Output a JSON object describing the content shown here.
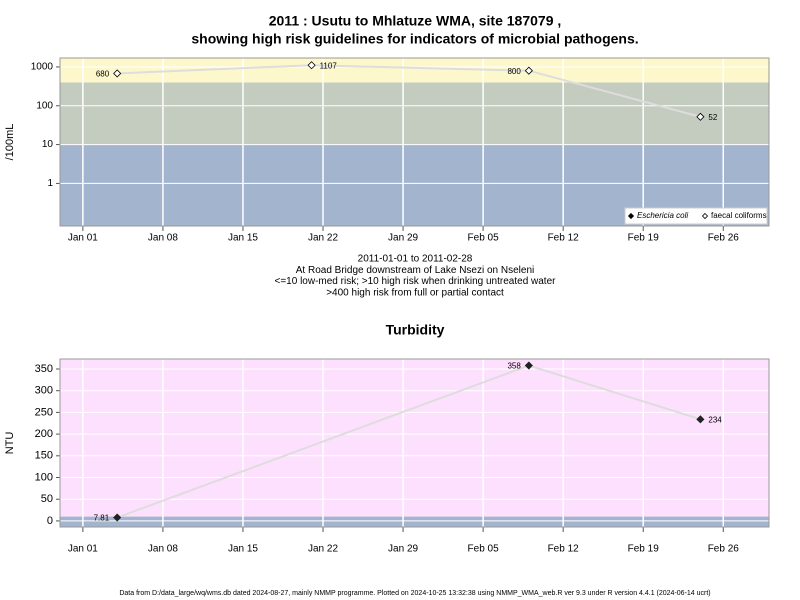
{
  "chart_data": [
    {
      "type": "line",
      "title": [
        "2011 : Usutu to Mhlatuze WMA, site 187079 ,",
        "showing high risk guidelines for indicators of microbial pathogens."
      ],
      "notes": [
        "2011-01-01 to 2011-02-28",
        "At Road Bridge downstream of Lake Nsezi on Nseleni",
        "<=10 low-med risk; >10 high risk when drinking untreated water",
        ">400 high risk from full or partial contact"
      ],
      "y_label": "/100mL",
      "log_y": true,
      "grid": true,
      "legend": "bottom-right",
      "thresholds": [
        10,
        400
      ],
      "band_colors": [
        "#a3b4cf",
        "#c4ccc0",
        "#fdf8cc"
      ],
      "line_color": "#dddddd",
      "x": [
        "2011-01-04",
        "2011-01-21",
        "2011-02-09",
        "2011-02-24"
      ],
      "series": [
        {
          "name": "Eschericia coli",
          "marker": "diamond",
          "color": "#000000",
          "values": [
            null,
            null,
            null,
            null
          ]
        },
        {
          "name": "faecal coliforms",
          "marker": "open-diamond",
          "color": "#000000",
          "values": [
            680,
            1107,
            800,
            52
          ]
        }
      ],
      "xlim": [
        "2010-12-30",
        "2011-03-02"
      ],
      "xticks": [
        {
          "value": "2011-01-01",
          "label": "Jan 01"
        },
        {
          "value": "2011-01-08",
          "label": "Jan 08"
        },
        {
          "value": "2011-01-15",
          "label": "Jan 15"
        },
        {
          "value": "2011-01-22",
          "label": "Jan 22"
        },
        {
          "value": "2011-01-29",
          "label": "Jan 29"
        },
        {
          "value": "2011-02-05",
          "label": "Feb 05"
        },
        {
          "value": "2011-02-12",
          "label": "Feb 12"
        },
        {
          "value": "2011-02-19",
          "label": "Feb 19"
        },
        {
          "value": "2011-02-26",
          "label": "Feb 26"
        }
      ],
      "ylim": [
        0.08,
        1700
      ],
      "yticks": [
        1,
        10,
        100,
        1000
      ]
    },
    {
      "type": "line",
      "title": [
        "Turbidity"
      ],
      "y_label": "NTU",
      "log_y": false,
      "grid": true,
      "thresholds": [
        10
      ],
      "band_colors": [
        "#a3b4cf",
        "#fde0fd"
      ],
      "line_color": "#dddddd",
      "x": [
        "2011-01-04",
        "2011-02-09",
        "2011-02-24"
      ],
      "marker": "diamond",
      "color": "#222222",
      "values": [
        7.81,
        358,
        234
      ],
      "xlim": [
        "2010-12-30",
        "2011-03-02"
      ],
      "xticks": [
        {
          "value": "2011-01-01",
          "label": "Jan 01"
        },
        {
          "value": "2011-01-08",
          "label": "Jan 08"
        },
        {
          "value": "2011-01-15",
          "label": "Jan 15"
        },
        {
          "value": "2011-01-22",
          "label": "Jan 22"
        },
        {
          "value": "2011-01-29",
          "label": "Jan 29"
        },
        {
          "value": "2011-02-05",
          "label": "Feb 05"
        },
        {
          "value": "2011-02-12",
          "label": "Feb 12"
        },
        {
          "value": "2011-02-19",
          "label": "Feb 19"
        },
        {
          "value": "2011-02-26",
          "label": "Feb 26"
        }
      ],
      "ylim": [
        -14,
        373
      ],
      "yticks": [
        0,
        50,
        100,
        150,
        200,
        250,
        300,
        350
      ]
    }
  ],
  "footer": "Data from D:/data_large/wq/wms.db dated 2024-08-27, mainly NMMP programme. Plotted on 2024-10-25 13:32:38 using NMMP_WMA_web.R ver 9.3 under R version 4.4.1 (2024-06-14 ucrt)"
}
